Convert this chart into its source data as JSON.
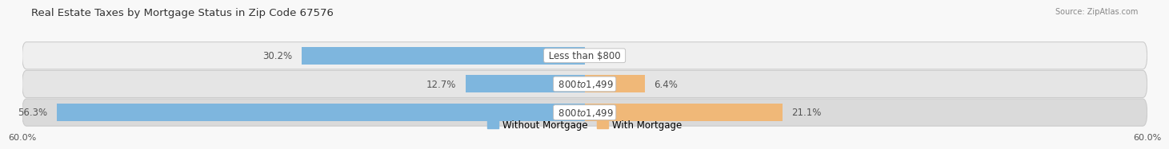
{
  "title": "Real Estate Taxes by Mortgage Status in Zip Code 67576",
  "source": "Source: ZipAtlas.com",
  "rows": [
    {
      "label": "Less than $800",
      "without_mortgage": 30.2,
      "with_mortgage": 0.0
    },
    {
      "label": "$800 to $1,499",
      "without_mortgage": 12.7,
      "with_mortgage": 6.4
    },
    {
      "label": "$800 to $1,499",
      "without_mortgage": 56.3,
      "with_mortgage": 21.1
    }
  ],
  "xlim": [
    -60,
    60
  ],
  "color_without": "#7EB6DE",
  "color_with": "#F0B878",
  "bar_height": 0.62,
  "row_bg_light": "#EFEFEF",
  "row_bg_mid": "#E5E5E5",
  "row_bg_dark": "#DADADA",
  "bg_color": "#F8F8F8",
  "label_fontsize": 8.5,
  "title_fontsize": 9.5,
  "source_fontsize": 7.0,
  "tick_fontsize": 8.0,
  "legend_without": "Without Mortgage",
  "legend_with": "With Mortgage"
}
